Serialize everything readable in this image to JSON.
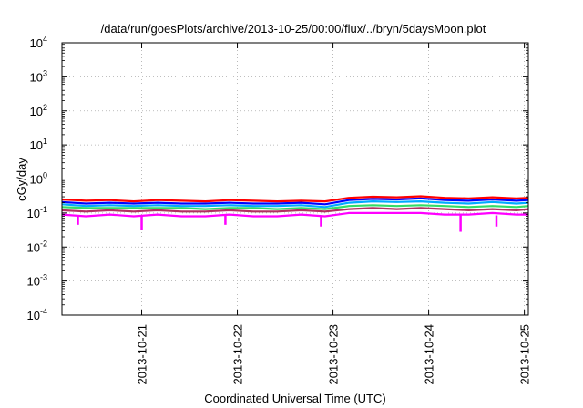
{
  "chart_data": {
    "type": "line",
    "title": "/data/run/goesPlots/archive/2013-10-25/00:00/flux/../bryn/5daysMoon.plot",
    "xlabel": "Coordinated Universal Time (UTC)",
    "ylabel": "cGy/day",
    "yscale": "log",
    "ylim": [
      0.0001,
      10000
    ],
    "xlim": [
      "2013-10-20T04:00",
      "2013-10-25T01:00"
    ],
    "x_ticks": [
      "2013-10-21",
      "2013-10-22",
      "2013-10-23",
      "2013-10-24",
      "2013-10-25"
    ],
    "y_ticks": [
      {
        "base": "10",
        "exp": "4",
        "value": 10000
      },
      {
        "base": "10",
        "exp": "3",
        "value": 1000
      },
      {
        "base": "10",
        "exp": "2",
        "value": 100
      },
      {
        "base": "10",
        "exp": "1",
        "value": 10
      },
      {
        "base": "10",
        "exp": "0",
        "value": 1
      },
      {
        "base": "10",
        "exp": "-1",
        "value": 0.1
      },
      {
        "base": "10",
        "exp": "-2",
        "value": 0.01
      },
      {
        "base": "10",
        "exp": "-3",
        "value": 0.001
      },
      {
        "base": "10",
        "exp": "-4",
        "value": 0.0001
      }
    ],
    "grid": true,
    "legend": "none",
    "x": [
      "2013-10-20T04:00",
      "2013-10-20T10:00",
      "2013-10-20T16:00",
      "2013-10-20T22:00",
      "2013-10-21T04:00",
      "2013-10-21T10:00",
      "2013-10-21T16:00",
      "2013-10-21T22:00",
      "2013-10-22T04:00",
      "2013-10-22T10:00",
      "2013-10-22T16:00",
      "2013-10-22T22:00",
      "2013-10-23T04:00",
      "2013-10-23T10:00",
      "2013-10-23T16:00",
      "2013-10-23T22:00",
      "2013-10-24T04:00",
      "2013-10-24T10:00",
      "2013-10-24T16:00",
      "2013-10-24T22:00",
      "2013-10-25T01:00"
    ],
    "series": [
      {
        "color": "#ff0000",
        "values": [
          0.25,
          0.23,
          0.24,
          0.22,
          0.24,
          0.23,
          0.22,
          0.24,
          0.23,
          0.22,
          0.23,
          0.22,
          0.28,
          0.3,
          0.29,
          0.31,
          0.28,
          0.27,
          0.29,
          0.27,
          0.28
        ]
      },
      {
        "color": "#0000ff",
        "values": [
          0.21,
          0.19,
          0.2,
          0.19,
          0.2,
          0.19,
          0.19,
          0.2,
          0.19,
          0.19,
          0.2,
          0.18,
          0.24,
          0.26,
          0.25,
          0.27,
          0.24,
          0.23,
          0.25,
          0.23,
          0.24
        ]
      },
      {
        "color": "#00aaff",
        "values": [
          0.18,
          0.16,
          0.17,
          0.16,
          0.17,
          0.16,
          0.16,
          0.17,
          0.16,
          0.16,
          0.17,
          0.15,
          0.2,
          0.22,
          0.21,
          0.22,
          0.2,
          0.19,
          0.21,
          0.19,
          0.2
        ]
      },
      {
        "color": "#33dd66",
        "values": [
          0.15,
          0.14,
          0.14,
          0.14,
          0.14,
          0.14,
          0.13,
          0.14,
          0.14,
          0.13,
          0.14,
          0.13,
          0.16,
          0.17,
          0.16,
          0.17,
          0.16,
          0.15,
          0.16,
          0.15,
          0.16
        ]
      },
      {
        "color": "#b03060",
        "values": [
          0.12,
          0.11,
          0.12,
          0.11,
          0.12,
          0.11,
          0.11,
          0.12,
          0.11,
          0.11,
          0.12,
          0.11,
          0.13,
          0.14,
          0.13,
          0.14,
          0.13,
          0.12,
          0.13,
          0.12,
          0.13
        ]
      },
      {
        "color": "#ff00ff",
        "values": [
          0.09,
          0.08,
          0.09,
          0.08,
          0.09,
          0.08,
          0.08,
          0.09,
          0.08,
          0.08,
          0.09,
          0.08,
          0.1,
          0.1,
          0.1,
          0.1,
          0.09,
          0.09,
          0.1,
          0.09,
          0.09
        ]
      }
    ],
    "dips": [
      {
        "x": "2013-10-20T08:00",
        "value": 0.045
      },
      {
        "x": "2013-10-21T00:00",
        "value": 0.032
      },
      {
        "x": "2013-10-21T21:00",
        "value": 0.045
      },
      {
        "x": "2013-10-22T21:00",
        "value": 0.04
      },
      {
        "x": "2013-10-24T08:00",
        "value": 0.028
      },
      {
        "x": "2013-10-24T17:00",
        "value": 0.04
      }
    ]
  }
}
